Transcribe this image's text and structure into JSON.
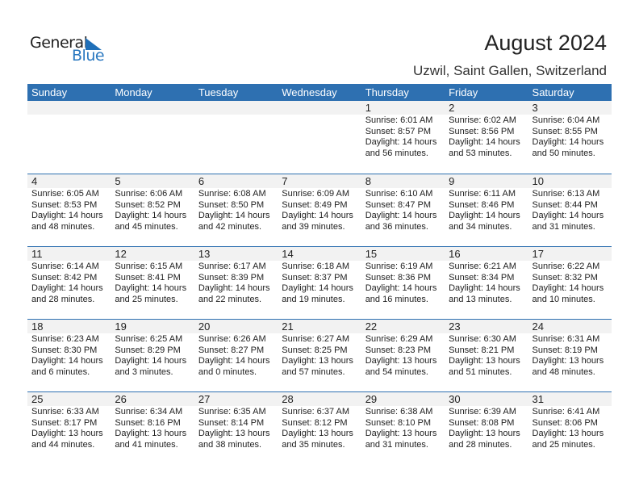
{
  "logo": {
    "text1": "General",
    "text2": "Blue"
  },
  "title": "August 2024",
  "location": "Uzwil, Saint Gallen, Switzerland",
  "days": [
    "Sunday",
    "Monday",
    "Tuesday",
    "Wednesday",
    "Thursday",
    "Friday",
    "Saturday"
  ],
  "colors": {
    "header": "#2e70b1",
    "number_row": "#f2f2f2"
  },
  "weeks": [
    [
      null,
      null,
      null,
      null,
      {
        "day": "1",
        "sunrise": "Sunrise: 6:01 AM",
        "sunset": "Sunset: 8:57 PM",
        "daylight1": "Daylight: 14 hours",
        "daylight2": "and 56 minutes."
      },
      {
        "day": "2",
        "sunrise": "Sunrise: 6:02 AM",
        "sunset": "Sunset: 8:56 PM",
        "daylight1": "Daylight: 14 hours",
        "daylight2": "and 53 minutes."
      },
      {
        "day": "3",
        "sunrise": "Sunrise: 6:04 AM",
        "sunset": "Sunset: 8:55 PM",
        "daylight1": "Daylight: 14 hours",
        "daylight2": "and 50 minutes."
      }
    ],
    [
      {
        "day": "4",
        "sunrise": "Sunrise: 6:05 AM",
        "sunset": "Sunset: 8:53 PM",
        "daylight1": "Daylight: 14 hours",
        "daylight2": "and 48 minutes."
      },
      {
        "day": "5",
        "sunrise": "Sunrise: 6:06 AM",
        "sunset": "Sunset: 8:52 PM",
        "daylight1": "Daylight: 14 hours",
        "daylight2": "and 45 minutes."
      },
      {
        "day": "6",
        "sunrise": "Sunrise: 6:08 AM",
        "sunset": "Sunset: 8:50 PM",
        "daylight1": "Daylight: 14 hours",
        "daylight2": "and 42 minutes."
      },
      {
        "day": "7",
        "sunrise": "Sunrise: 6:09 AM",
        "sunset": "Sunset: 8:49 PM",
        "daylight1": "Daylight: 14 hours",
        "daylight2": "and 39 minutes."
      },
      {
        "day": "8",
        "sunrise": "Sunrise: 6:10 AM",
        "sunset": "Sunset: 8:47 PM",
        "daylight1": "Daylight: 14 hours",
        "daylight2": "and 36 minutes."
      },
      {
        "day": "9",
        "sunrise": "Sunrise: 6:11 AM",
        "sunset": "Sunset: 8:46 PM",
        "daylight1": "Daylight: 14 hours",
        "daylight2": "and 34 minutes."
      },
      {
        "day": "10",
        "sunrise": "Sunrise: 6:13 AM",
        "sunset": "Sunset: 8:44 PM",
        "daylight1": "Daylight: 14 hours",
        "daylight2": "and 31 minutes."
      }
    ],
    [
      {
        "day": "11",
        "sunrise": "Sunrise: 6:14 AM",
        "sunset": "Sunset: 8:42 PM",
        "daylight1": "Daylight: 14 hours",
        "daylight2": "and 28 minutes."
      },
      {
        "day": "12",
        "sunrise": "Sunrise: 6:15 AM",
        "sunset": "Sunset: 8:41 PM",
        "daylight1": "Daylight: 14 hours",
        "daylight2": "and 25 minutes."
      },
      {
        "day": "13",
        "sunrise": "Sunrise: 6:17 AM",
        "sunset": "Sunset: 8:39 PM",
        "daylight1": "Daylight: 14 hours",
        "daylight2": "and 22 minutes."
      },
      {
        "day": "14",
        "sunrise": "Sunrise: 6:18 AM",
        "sunset": "Sunset: 8:37 PM",
        "daylight1": "Daylight: 14 hours",
        "daylight2": "and 19 minutes."
      },
      {
        "day": "15",
        "sunrise": "Sunrise: 6:19 AM",
        "sunset": "Sunset: 8:36 PM",
        "daylight1": "Daylight: 14 hours",
        "daylight2": "and 16 minutes."
      },
      {
        "day": "16",
        "sunrise": "Sunrise: 6:21 AM",
        "sunset": "Sunset: 8:34 PM",
        "daylight1": "Daylight: 14 hours",
        "daylight2": "and 13 minutes."
      },
      {
        "day": "17",
        "sunrise": "Sunrise: 6:22 AM",
        "sunset": "Sunset: 8:32 PM",
        "daylight1": "Daylight: 14 hours",
        "daylight2": "and 10 minutes."
      }
    ],
    [
      {
        "day": "18",
        "sunrise": "Sunrise: 6:23 AM",
        "sunset": "Sunset: 8:30 PM",
        "daylight1": "Daylight: 14 hours",
        "daylight2": "and 6 minutes."
      },
      {
        "day": "19",
        "sunrise": "Sunrise: 6:25 AM",
        "sunset": "Sunset: 8:29 PM",
        "daylight1": "Daylight: 14 hours",
        "daylight2": "and 3 minutes."
      },
      {
        "day": "20",
        "sunrise": "Sunrise: 6:26 AM",
        "sunset": "Sunset: 8:27 PM",
        "daylight1": "Daylight: 14 hours",
        "daylight2": "and 0 minutes."
      },
      {
        "day": "21",
        "sunrise": "Sunrise: 6:27 AM",
        "sunset": "Sunset: 8:25 PM",
        "daylight1": "Daylight: 13 hours",
        "daylight2": "and 57 minutes."
      },
      {
        "day": "22",
        "sunrise": "Sunrise: 6:29 AM",
        "sunset": "Sunset: 8:23 PM",
        "daylight1": "Daylight: 13 hours",
        "daylight2": "and 54 minutes."
      },
      {
        "day": "23",
        "sunrise": "Sunrise: 6:30 AM",
        "sunset": "Sunset: 8:21 PM",
        "daylight1": "Daylight: 13 hours",
        "daylight2": "and 51 minutes."
      },
      {
        "day": "24",
        "sunrise": "Sunrise: 6:31 AM",
        "sunset": "Sunset: 8:19 PM",
        "daylight1": "Daylight: 13 hours",
        "daylight2": "and 48 minutes."
      }
    ],
    [
      {
        "day": "25",
        "sunrise": "Sunrise: 6:33 AM",
        "sunset": "Sunset: 8:17 PM",
        "daylight1": "Daylight: 13 hours",
        "daylight2": "and 44 minutes."
      },
      {
        "day": "26",
        "sunrise": "Sunrise: 6:34 AM",
        "sunset": "Sunset: 8:16 PM",
        "daylight1": "Daylight: 13 hours",
        "daylight2": "and 41 minutes."
      },
      {
        "day": "27",
        "sunrise": "Sunrise: 6:35 AM",
        "sunset": "Sunset: 8:14 PM",
        "daylight1": "Daylight: 13 hours",
        "daylight2": "and 38 minutes."
      },
      {
        "day": "28",
        "sunrise": "Sunrise: 6:37 AM",
        "sunset": "Sunset: 8:12 PM",
        "daylight1": "Daylight: 13 hours",
        "daylight2": "and 35 minutes."
      },
      {
        "day": "29",
        "sunrise": "Sunrise: 6:38 AM",
        "sunset": "Sunset: 8:10 PM",
        "daylight1": "Daylight: 13 hours",
        "daylight2": "and 31 minutes."
      },
      {
        "day": "30",
        "sunrise": "Sunrise: 6:39 AM",
        "sunset": "Sunset: 8:08 PM",
        "daylight1": "Daylight: 13 hours",
        "daylight2": "and 28 minutes."
      },
      {
        "day": "31",
        "sunrise": "Sunrise: 6:41 AM",
        "sunset": "Sunset: 8:06 PM",
        "daylight1": "Daylight: 13 hours",
        "daylight2": "and 25 minutes."
      }
    ]
  ]
}
